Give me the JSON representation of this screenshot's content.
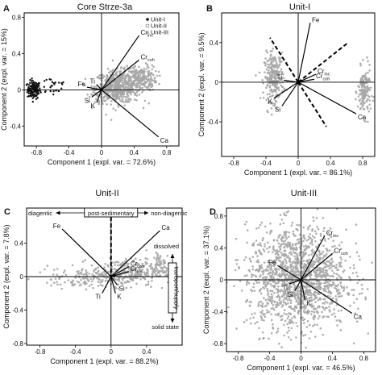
{
  "chart_data": [
    {
      "panel": "A",
      "type": "scatter",
      "title": "Core Strze-3a",
      "xlabel": "Component 1 (expl. var. = 72.6%)",
      "ylabel": "Component 2 (expl. var. = 15%)",
      "xlim": [
        -0.95,
        0.95
      ],
      "ylim": [
        -0.62,
        0.85
      ],
      "xticks": [
        -0.8,
        -0.4,
        0,
        0.4,
        0.8
      ],
      "yticks": [
        -0.8,
        -0.4,
        0,
        0.4,
        0.8
      ],
      "legend": {
        "position": "top-right",
        "entries": [
          "Unit-I",
          "Unit-II",
          "Unit-III"
        ]
      },
      "series": [
        {
          "name": "Unit-I",
          "marker": "black dot",
          "clusters": [
            {
              "cx": -0.83,
              "cy": 0.0,
              "sx": 0.04,
              "sy": 0.05,
              "n": 130
            },
            {
              "cx": -0.6,
              "cy": 0.05,
              "sx": 0.1,
              "sy": 0.06,
              "n": 25
            }
          ]
        },
        {
          "name": "Unit-II",
          "marker": "grey square",
          "clusters": [
            {
              "cx": 0.05,
              "cy": 0.0,
              "sx": 0.08,
              "sy": 0.06,
              "n": 40
            }
          ]
        },
        {
          "name": "Unit-III",
          "marker": "grey dot",
          "clusters": [
            {
              "cx": 0.2,
              "cy": 0.03,
              "sx": 0.14,
              "sy": 0.09,
              "n": 520
            },
            {
              "cx": 0.48,
              "cy": 0.13,
              "sx": 0.1,
              "sy": 0.07,
              "n": 200
            }
          ]
        }
      ],
      "vectors": [
        {
          "label": "Cr",
          "sub": "inc",
          "x": 0.46,
          "y": 0.6,
          "style": "solid"
        },
        {
          "label": "Cr",
          "sub": "coh",
          "x": 0.46,
          "y": 0.33,
          "style": "solid"
        },
        {
          "label": "Ti",
          "sub": "",
          "x": -0.06,
          "y": 0.06,
          "style": "solid"
        },
        {
          "label": "Fe",
          "sub": "",
          "x": -0.18,
          "y": 0.03,
          "style": "solid"
        },
        {
          "label": "Si",
          "sub": "",
          "x": -0.12,
          "y": -0.08,
          "style": "solid"
        },
        {
          "label": "K",
          "sub": "",
          "x": -0.06,
          "y": -0.14,
          "style": "solid"
        },
        {
          "label": "Ca",
          "sub": "",
          "x": 0.7,
          "y": -0.52,
          "style": "solid"
        }
      ]
    },
    {
      "panel": "B",
      "type": "scatter",
      "title": "Unit-I",
      "xlabel": "Component 1 (expl. var. = 86.1%)",
      "ylabel": "Component 2 (expl. var. = 9.5%)",
      "xlim": [
        -0.95,
        0.95
      ],
      "ylim": [
        -0.75,
        0.7
      ],
      "xticks": [
        -0.8,
        -0.4,
        0,
        0.4,
        0.8
      ],
      "yticks": [
        -0.4,
        0,
        0.4
      ],
      "series": [
        {
          "name": "",
          "marker": "grey dot",
          "clusters": [
            {
              "cx": -0.3,
              "cy": 0.05,
              "sx": 0.06,
              "sy": 0.12,
              "n": 260
            },
            {
              "cx": 0.82,
              "cy": -0.1,
              "sx": 0.04,
              "sy": 0.12,
              "n": 150
            }
          ]
        }
      ],
      "vectors": [
        {
          "label": "Fe",
          "sub": "",
          "x": 0.15,
          "y": 0.6,
          "style": "solid"
        },
        {
          "label": "Cr",
          "sub": "inc",
          "x": 0.22,
          "y": 0.08,
          "style": "solid"
        },
        {
          "label": "Cr",
          "sub": "coh",
          "x": 0.2,
          "y": 0.03,
          "style": "solid"
        },
        {
          "label": "Ti",
          "sub": "",
          "x": -0.18,
          "y": 0.02,
          "style": "solid"
        },
        {
          "label": "K",
          "sub": "",
          "x": -0.3,
          "y": -0.16,
          "style": "solid"
        },
        {
          "label": "Si",
          "sub": "",
          "x": -0.2,
          "y": -0.24,
          "style": "solid"
        },
        {
          "label": "Ca",
          "sub": "",
          "x": 0.72,
          "y": -0.32,
          "style": "solid"
        },
        {
          "label": "",
          "sub": "",
          "x": -0.35,
          "y": 0.45,
          "style": "dashed"
        },
        {
          "label": "",
          "sub": "",
          "x": 0.35,
          "y": -0.45,
          "style": "dashed"
        },
        {
          "label": "",
          "sub": "",
          "x": 0.62,
          "y": 0.4,
          "style": "dashed"
        }
      ]
    },
    {
      "panel": "C",
      "type": "scatter",
      "title": "Unit-II",
      "xlabel": "Component 1 (expl. var. = 88.2%)",
      "ylabel": "Component 2 (expl. var. = 7.8%)",
      "xlim": [
        -0.95,
        0.8
      ],
      "ylim": [
        -0.82,
        0.82
      ],
      "xticks": [
        -0.8,
        -0.4,
        0,
        0.4
      ],
      "yticks": [
        -0.8,
        -0.4,
        0,
        0.4
      ],
      "series": [
        {
          "name": "",
          "marker": "grey dot",
          "clusters": [
            {
              "cx": -0.3,
              "cy": -0.02,
              "sx": 0.28,
              "sy": 0.06,
              "n": 120
            },
            {
              "cx": 0.15,
              "cy": 0.05,
              "sx": 0.18,
              "sy": 0.08,
              "n": 260
            },
            {
              "cx": 0.55,
              "cy": 0.12,
              "sx": 0.08,
              "sy": 0.1,
              "n": 80
            }
          ]
        }
      ],
      "vectors": [
        {
          "label": "Fe",
          "sub": "",
          "x": -0.55,
          "y": 0.57,
          "style": "solid"
        },
        {
          "label": "Ca",
          "sub": "",
          "x": 0.55,
          "y": 0.55,
          "style": "solid"
        },
        {
          "label": "Cr",
          "sub": "coh",
          "x": 0.2,
          "y": 0.12,
          "style": "solid"
        },
        {
          "label": "Cr",
          "sub": "inc",
          "x": 0.2,
          "y": 0.06,
          "style": "solid"
        },
        {
          "label": "Ti",
          "sub": "",
          "x": -0.1,
          "y": -0.2,
          "style": "solid"
        },
        {
          "label": "K",
          "sub": "",
          "x": 0.05,
          "y": -0.2,
          "style": "solid"
        },
        {
          "label": "Si",
          "sub": "",
          "x": 0.07,
          "y": -0.1,
          "style": "solid"
        }
      ],
      "annotations": [
        "diagentic",
        "post-sedimentary",
        "non-diagentic",
        "dissolved",
        "transport/supply",
        "solid state"
      ]
    },
    {
      "panel": "D",
      "type": "scatter",
      "title": "Unit-III",
      "xlabel": "Component 1 (expl. var. = 46.5%)",
      "ylabel": "Component 2 (expl. var. = 37.1%)",
      "xlim": [
        -0.95,
        0.95
      ],
      "ylim": [
        -0.9,
        0.9
      ],
      "xticks": [
        -0.8,
        -0.4,
        0,
        0.4,
        0.8
      ],
      "yticks": [
        -0.8,
        -0.4,
        0,
        0.4,
        0.8
      ],
      "series": [
        {
          "name": "",
          "marker": "grey dot",
          "clusters": [
            {
              "cx": -0.05,
              "cy": 0.02,
              "sx": 0.32,
              "sy": 0.32,
              "n": 1500
            }
          ]
        }
      ],
      "vectors": [
        {
          "label": "Cr",
          "sub": "inc",
          "x": 0.3,
          "y": 0.55,
          "style": "solid"
        },
        {
          "label": "Cr",
          "sub": "coh",
          "x": 0.4,
          "y": 0.33,
          "style": "solid"
        },
        {
          "label": "Fe",
          "sub": "",
          "x": -0.3,
          "y": 0.18,
          "style": "solid"
        },
        {
          "label": "Ti",
          "sub": "",
          "x": -0.15,
          "y": -0.05,
          "style": "solid"
        },
        {
          "label": "Si",
          "sub": "",
          "x": -0.08,
          "y": -0.14,
          "style": "solid"
        },
        {
          "label": "K",
          "sub": "",
          "x": 0.05,
          "y": -0.25,
          "style": "solid"
        },
        {
          "label": "Ca",
          "sub": "",
          "x": 0.65,
          "y": -0.42,
          "style": "solid"
        }
      ]
    }
  ]
}
